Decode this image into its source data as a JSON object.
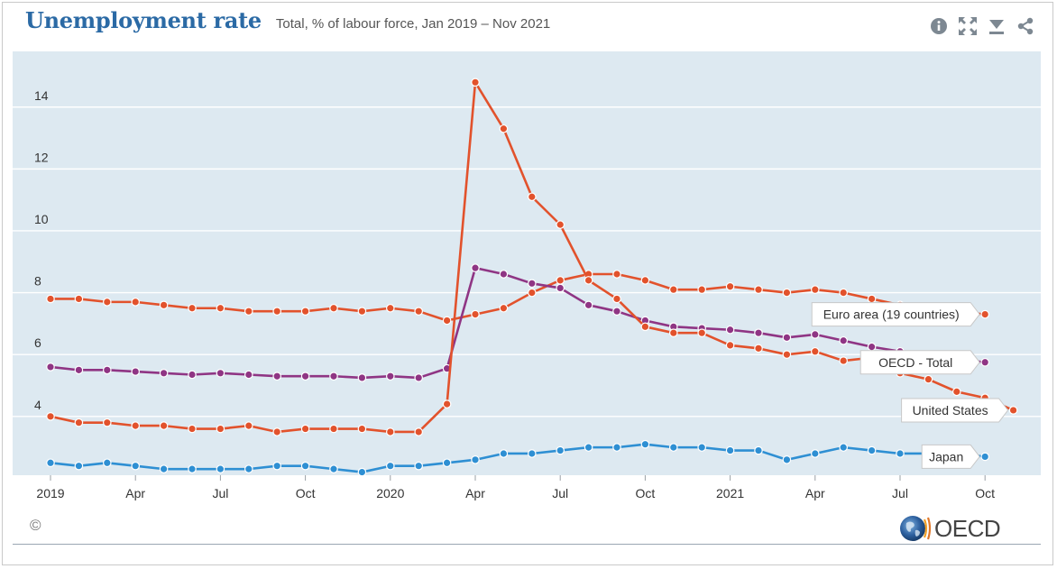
{
  "header": {
    "title": "Unemployment rate",
    "subtitle": "Total, % of labour force, Jan 2019 – Nov 2021"
  },
  "toolbar": {
    "icons": [
      "info-icon",
      "fullscreen-icon",
      "download-icon",
      "share-icon"
    ],
    "icon_color": "#7d8892"
  },
  "footer": {
    "copyright": "©",
    "logo_text": "OECD"
  },
  "colors": {
    "plot_background": "#dde9f1",
    "euro_area": "#e2522c",
    "united_states": "#e2522c",
    "oecd_total": "#8f3584",
    "japan": "#2e8fd3"
  },
  "chart_data": {
    "type": "line",
    "x_tick_labels": [
      "2019",
      "Apr",
      "Jul",
      "Oct",
      "2020",
      "Apr",
      "Jul",
      "Oct",
      "2021",
      "Apr",
      "Jul",
      "Oct"
    ],
    "x_tick_month_index": [
      0,
      3,
      6,
      9,
      12,
      15,
      18,
      21,
      24,
      27,
      30,
      33
    ],
    "y_ticks": [
      4,
      6,
      8,
      10,
      12,
      14
    ],
    "ylim": [
      2.1,
      15.8
    ],
    "xlim_month_index": [
      0,
      35
    ],
    "grid": true,
    "series": [
      {
        "name": "Euro area (19 countries)",
        "color": "#e2522c",
        "values": [
          7.8,
          7.8,
          7.7,
          7.7,
          7.6,
          7.5,
          7.5,
          7.4,
          7.4,
          7.4,
          7.5,
          7.4,
          7.5,
          7.4,
          7.1,
          7.3,
          7.5,
          8.0,
          8.4,
          8.6,
          8.6,
          8.4,
          8.1,
          8.1,
          8.2,
          8.1,
          8.0,
          8.1,
          8.0,
          7.8,
          7.6,
          7.5,
          7.4,
          7.3
        ]
      },
      {
        "name": "OECD - Total",
        "color": "#8f3584",
        "values": [
          5.6,
          5.5,
          5.5,
          5.45,
          5.4,
          5.35,
          5.4,
          5.35,
          5.3,
          5.3,
          5.3,
          5.25,
          5.3,
          5.25,
          5.55,
          8.8,
          8.6,
          8.3,
          8.15,
          7.6,
          7.4,
          7.1,
          6.9,
          6.85,
          6.8,
          6.7,
          6.55,
          6.65,
          6.45,
          6.25,
          6.1,
          5.95,
          5.85,
          5.75
        ]
      },
      {
        "name": "United States",
        "color": "#e2522c",
        "values": [
          4.0,
          3.8,
          3.8,
          3.7,
          3.7,
          3.6,
          3.6,
          3.7,
          3.5,
          3.6,
          3.6,
          3.6,
          3.5,
          3.5,
          4.4,
          14.8,
          13.3,
          11.1,
          10.2,
          8.4,
          7.8,
          6.9,
          6.7,
          6.7,
          6.3,
          6.2,
          6.0,
          6.1,
          5.8,
          5.9,
          5.4,
          5.2,
          4.8,
          4.6,
          4.2
        ]
      },
      {
        "name": "Japan",
        "color": "#2e8fd3",
        "values": [
          2.5,
          2.4,
          2.5,
          2.4,
          2.3,
          2.3,
          2.3,
          2.3,
          2.4,
          2.4,
          2.3,
          2.2,
          2.4,
          2.4,
          2.5,
          2.6,
          2.8,
          2.8,
          2.9,
          3.0,
          3.0,
          3.1,
          3.0,
          3.0,
          2.9,
          2.9,
          2.6,
          2.8,
          3.0,
          2.9,
          2.8,
          2.8,
          2.8,
          2.7
        ]
      }
    ],
    "legend_placement": "inline labels at right end of each series"
  }
}
